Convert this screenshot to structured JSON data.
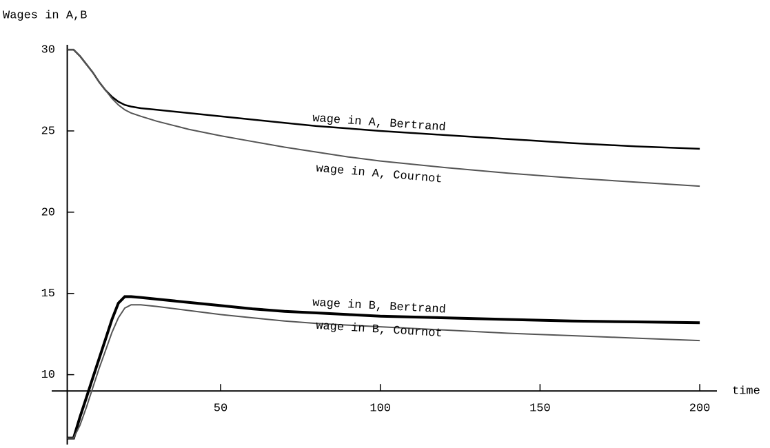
{
  "chart_data": {
    "type": "line",
    "ylabel": "Wages in A,B",
    "xlabel": "time",
    "x": [
      2,
      4,
      6,
      8,
      10,
      12,
      14,
      16,
      18,
      20,
      22,
      25,
      30,
      40,
      50,
      60,
      70,
      80,
      90,
      100,
      120,
      140,
      160,
      180,
      200
    ],
    "series": [
      {
        "name": "wage in A, Bertrand",
        "color": "#000000",
        "values": [
          30,
          30,
          29.6,
          29.1,
          28.6,
          28,
          27.5,
          27.1,
          26.8,
          26.6,
          26.5,
          26.4,
          26.3,
          26.1,
          25.9,
          25.7,
          25.5,
          25.3,
          25.15,
          25,
          24.75,
          24.5,
          24.25,
          24.05,
          23.9
        ]
      },
      {
        "name": "wage in A, Cournot",
        "color": "#555555",
        "values": [
          30,
          30,
          29.6,
          29.1,
          28.6,
          28,
          27.5,
          27,
          26.6,
          26.3,
          26.1,
          25.9,
          25.6,
          25.1,
          24.7,
          24.35,
          24.0,
          23.7,
          23.4,
          23.15,
          22.75,
          22.4,
          22.1,
          21.85,
          21.6
        ]
      },
      {
        "name": "wage in B, Bertrand",
        "color": "#000000",
        "values": [
          6.1,
          6.1,
          7.4,
          8.6,
          9.8,
          11,
          12.2,
          13.4,
          14.4,
          14.8,
          14.8,
          14.75,
          14.65,
          14.45,
          14.25,
          14.05,
          13.9,
          13.8,
          13.7,
          13.6,
          13.5,
          13.4,
          13.3,
          13.25,
          13.2
        ]
      },
      {
        "name": "wage in B, Cournot",
        "color": "#555555",
        "values": [
          6.1,
          6.1,
          6.9,
          8.0,
          9.2,
          10.4,
          11.5,
          12.6,
          13.5,
          14.1,
          14.3,
          14.3,
          14.2,
          13.95,
          13.7,
          13.5,
          13.3,
          13.15,
          13.05,
          12.95,
          12.75,
          12.55,
          12.4,
          12.25,
          12.1
        ]
      }
    ],
    "xlim": [
      0,
      215
    ],
    "ylim": [
      5.7,
      30.3
    ],
    "xticks": [
      50,
      100,
      150,
      200
    ],
    "yticks": [
      10,
      15,
      20,
      25,
      30
    ],
    "axes_origin": [
      2,
      9
    ],
    "legend": false,
    "grid": false
  }
}
